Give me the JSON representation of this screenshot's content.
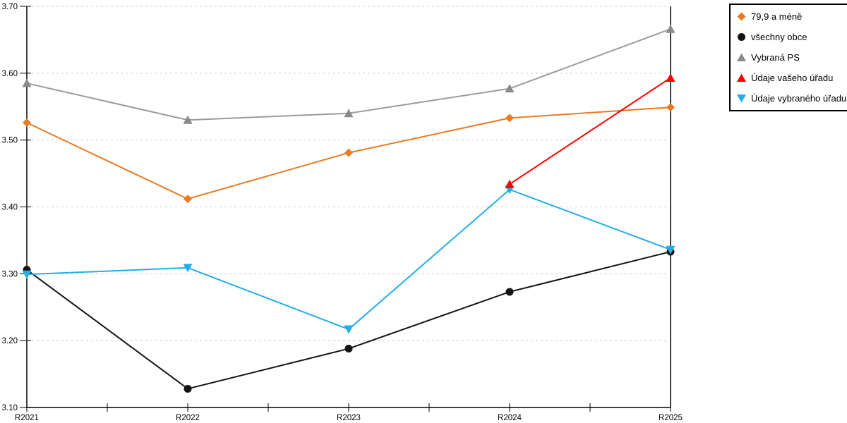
{
  "chart_data": {
    "type": "line",
    "title": "",
    "xlabel": "",
    "ylabel": "",
    "x": [
      "R2021",
      "R2022",
      "R2023",
      "R2024",
      "R2025"
    ],
    "y_ticks": [
      "3.10",
      "3.20",
      "3.30",
      "3.40",
      "3.50",
      "3.60",
      "3.70"
    ],
    "ylim": [
      3.1,
      3.7
    ],
    "grid": "horizontal-dashed",
    "grid_color": "#C9C9C9",
    "axis_color": "#000000",
    "legend_position": "outside-top-right",
    "legend_border_color": "#000000",
    "series": [
      {
        "name": "79,9 a méně",
        "marker": "diamond",
        "color": "#E87A22",
        "values": [
          3.526,
          3.412,
          3.481,
          3.533,
          3.549
        ]
      },
      {
        "name": "všechny obce",
        "marker": "circle",
        "color": "#141414",
        "values": [
          3.306,
          3.128,
          3.188,
          3.273,
          3.333
        ]
      },
      {
        "name": "Vybraná PS",
        "marker": "triangle-up",
        "color": "#9B9B9B",
        "marker_color": "#8A8A8A",
        "values": [
          3.585,
          3.53,
          3.54,
          3.577,
          3.666
        ]
      },
      {
        "name": "Údaje vašeho úřadu",
        "marker": "triangle-up",
        "color": "#FF0000",
        "values": [
          null,
          null,
          null,
          3.434,
          3.593
        ]
      },
      {
        "name": "Údaje vybraného úřadu",
        "marker": "triangle-down",
        "color": "#22AEE8",
        "values": [
          3.299,
          3.309,
          3.217,
          3.426,
          3.336
        ]
      }
    ]
  }
}
